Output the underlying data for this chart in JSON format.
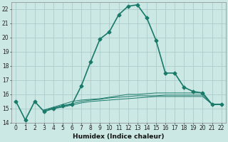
{
  "title": "",
  "xlabel": "Humidex (Indice chaleur)",
  "background_color": "#cce8e4",
  "grid_color": "#aacccc",
  "line_color": "#1a7a6a",
  "series_main": {
    "x": [
      0,
      1,
      2,
      3,
      4,
      5,
      6,
      7,
      8,
      9,
      10,
      11,
      12,
      13,
      14,
      15,
      16,
      17,
      18,
      19,
      20,
      21,
      22
    ],
    "y": [
      15.5,
      14.2,
      15.5,
      14.8,
      15.0,
      15.2,
      15.3,
      16.6,
      18.3,
      19.9,
      20.4,
      21.6,
      22.2,
      22.3,
      21.4,
      19.8,
      17.5,
      17.5,
      16.5,
      16.2,
      16.1,
      15.3,
      15.3
    ],
    "marker": "D",
    "linewidth": 1.2,
    "markersize": 2.5
  },
  "series_extra": [
    {
      "x": [
        3,
        4,
        5,
        6,
        7,
        8,
        9,
        10,
        11,
        12,
        13,
        14,
        15,
        16,
        17,
        18,
        19,
        20,
        21,
        22
      ],
      "y": [
        14.8,
        15.0,
        15.1,
        15.25,
        15.4,
        15.5,
        15.55,
        15.6,
        15.65,
        15.7,
        15.75,
        15.8,
        15.85,
        15.85,
        15.85,
        15.85,
        15.85,
        15.85,
        15.3,
        15.3
      ]
    },
    {
      "x": [
        3,
        4,
        5,
        6,
        7,
        8,
        9,
        10,
        11,
        12,
        13,
        14,
        15,
        16,
        17,
        18,
        19,
        20,
        21,
        22
      ],
      "y": [
        14.9,
        15.05,
        15.2,
        15.35,
        15.5,
        15.6,
        15.65,
        15.75,
        15.8,
        15.85,
        15.9,
        15.9,
        15.9,
        15.95,
        15.95,
        15.95,
        15.95,
        15.95,
        15.3,
        15.3
      ]
    },
    {
      "x": [
        3,
        4,
        5,
        6,
        7,
        8,
        9,
        10,
        11,
        12,
        13,
        14,
        15,
        16,
        17,
        18,
        19,
        20,
        21,
        22
      ],
      "y": [
        14.9,
        15.1,
        15.3,
        15.5,
        15.6,
        15.65,
        15.7,
        15.8,
        15.9,
        16.0,
        16.0,
        16.05,
        16.1,
        16.1,
        16.1,
        16.1,
        16.1,
        16.1,
        15.3,
        15.3
      ]
    }
  ],
  "xlim": [
    -0.5,
    22.5
  ],
  "ylim": [
    14,
    22.5
  ],
  "yticks": [
    14,
    15,
    16,
    17,
    18,
    19,
    20,
    21,
    22
  ],
  "xticks": [
    0,
    1,
    2,
    3,
    4,
    5,
    6,
    7,
    8,
    9,
    10,
    11,
    12,
    13,
    14,
    15,
    16,
    17,
    18,
    19,
    20,
    21,
    22
  ],
  "tick_fontsize": 5.5,
  "xlabel_fontsize": 6.5
}
